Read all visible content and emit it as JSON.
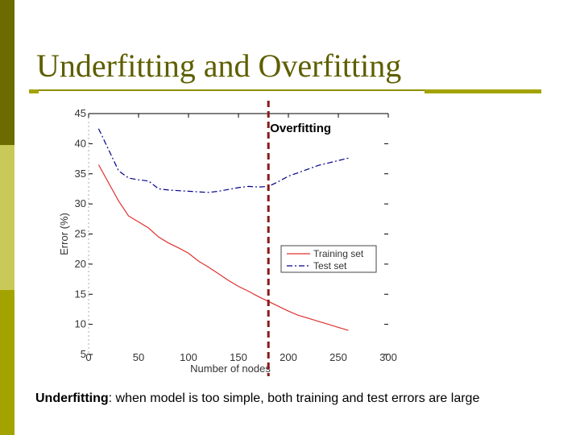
{
  "slide": {
    "title": "Underfitting and Overfitting",
    "caption_term": "Underfitting",
    "caption_text": ": when model is too simple, both training and test errors are large"
  },
  "colors": {
    "bar_dark": "#6b6b00",
    "bar_light": "#c9c95a",
    "bar_mid": "#a3a300",
    "training_line": "#e03030",
    "test_line": "#00008b",
    "divider": "#8b1a1a"
  },
  "chart_data": {
    "type": "line",
    "xlabel": "Number of nodes",
    "ylabel": "Error (%)",
    "xlim": [
      0,
      300
    ],
    "ylim": [
      5,
      45
    ],
    "xticks": [
      0,
      50,
      100,
      150,
      200,
      250,
      300
    ],
    "yticks": [
      5,
      10,
      15,
      20,
      25,
      30,
      35,
      40,
      45
    ],
    "annotation": {
      "text": "Overfitting",
      "x": 180
    },
    "legend_position": "right",
    "series": [
      {
        "name": "Training set",
        "style": "solid",
        "x": [
          10,
          20,
          30,
          40,
          50,
          60,
          70,
          80,
          90,
          100,
          110,
          120,
          130,
          140,
          150,
          160,
          170,
          180,
          190,
          200,
          210,
          220,
          230,
          240,
          250,
          260
        ],
        "y": [
          36.5,
          33.5,
          30.5,
          28,
          27,
          26,
          24.5,
          23.5,
          22.7,
          21.8,
          20.5,
          19.5,
          18.4,
          17.3,
          16.3,
          15.5,
          14.6,
          13.8,
          13,
          12.2,
          11.5,
          11,
          10.5,
          10,
          9.5,
          9
        ]
      },
      {
        "name": "Test set",
        "style": "dashdot",
        "x": [
          10,
          20,
          30,
          40,
          50,
          60,
          70,
          80,
          90,
          100,
          110,
          120,
          130,
          140,
          150,
          160,
          170,
          180,
          190,
          200,
          210,
          220,
          230,
          240,
          250,
          260
        ],
        "y": [
          42.5,
          39,
          35.5,
          34.3,
          34,
          33.8,
          32.5,
          32.3,
          32.2,
          32.1,
          32,
          31.9,
          32.1,
          32.4,
          32.7,
          32.9,
          32.8,
          32.9,
          33.7,
          34.6,
          35.2,
          35.8,
          36.4,
          36.8,
          37.2,
          37.6
        ]
      }
    ]
  }
}
